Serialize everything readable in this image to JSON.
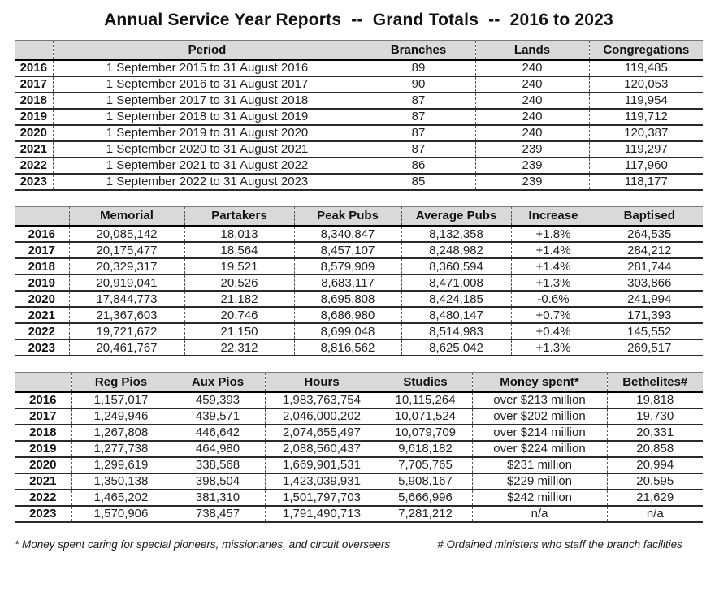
{
  "title": "Annual Service Year Reports  --  Grand Totals  --  2016 to 2023",
  "tables": [
    {
      "name": "period-overview",
      "columns": [
        "",
        "Period",
        "Branches",
        "Lands",
        "Congregations"
      ],
      "rows": [
        [
          "2016",
          "1 September 2015 to 31 August 2016",
          "89",
          "240",
          "119,485"
        ],
        [
          "2017",
          "1 September 2016 to 31 August 2017",
          "90",
          "240",
          "120,053"
        ],
        [
          "2018",
          "1 September 2017 to 31 August 2018",
          "87",
          "240",
          "119,954"
        ],
        [
          "2019",
          "1 September 2018 to 31 August 2019",
          "87",
          "240",
          "119,712"
        ],
        [
          "2020",
          "1 September 2019 to 31 August 2020",
          "87",
          "240",
          "120,387"
        ],
        [
          "2021",
          "1 September 2020 to 31 August 2021",
          "87",
          "239",
          "119,297"
        ],
        [
          "2022",
          "1 September 2021 to 31 August 2022",
          "86",
          "239",
          "117,960"
        ],
        [
          "2023",
          "1 September 2022 to 31 August 2023",
          "85",
          "239",
          "118,177"
        ]
      ]
    },
    {
      "name": "memorial-publishers",
      "columns": [
        "",
        "Memorial",
        "Partakers",
        "Peak Pubs",
        "Average Pubs",
        "Increase",
        "Baptised"
      ],
      "rows": [
        [
          "2016",
          "20,085,142",
          "18,013",
          "8,340,847",
          "8,132,358",
          "+1.8%",
          "264,535"
        ],
        [
          "2017",
          "20,175,477",
          "18,564",
          "8,457,107",
          "8,248,982",
          "+1.4%",
          "284,212"
        ],
        [
          "2018",
          "20,329,317",
          "19,521",
          "8,579,909",
          "8,360,594",
          "+1.4%",
          "281,744"
        ],
        [
          "2019",
          "20,919,041",
          "20,526",
          "8,683,117",
          "8,471,008",
          "+1.3%",
          "303,866"
        ],
        [
          "2020",
          "17,844,773",
          "21,182",
          "8,695,808",
          "8,424,185",
          "-0.6%",
          "241,994"
        ],
        [
          "2021",
          "21,367,603",
          "20,746",
          "8,686,980",
          "8,480,147",
          "+0.7%",
          "171,393"
        ],
        [
          "2022",
          "19,721,672",
          "21,150",
          "8,699,048",
          "8,514,983",
          "+0.4%",
          "145,552"
        ],
        [
          "2023",
          "20,461,767",
          "22,312",
          "8,816,562",
          "8,625,042",
          "+1.3%",
          "269,517"
        ]
      ]
    },
    {
      "name": "pioneers-hours-studies",
      "columns": [
        "",
        "Reg Pios",
        "Aux Pios",
        "Hours",
        "Studies",
        "Money spent*",
        "Bethelites#"
      ],
      "rows": [
        [
          "2016",
          "1,157,017",
          "459,393",
          "1,983,763,754",
          "10,115,264",
          "over $213 million",
          "19,818"
        ],
        [
          "2017",
          "1,249,946",
          "439,571",
          "2,046,000,202",
          "10,071,524",
          "over $202 million",
          "19,730"
        ],
        [
          "2018",
          "1,267,808",
          "446,642",
          "2,074,655,497",
          "10,079,709",
          "over $214 million",
          "20,331"
        ],
        [
          "2019",
          "1,277,738",
          "464,980",
          "2,088,560,437",
          "9,618,182",
          "over $224 million",
          "20,858"
        ],
        [
          "2020",
          "1,299,619",
          "338,568",
          "1,669,901,531",
          "7,705,765",
          "$231 million",
          "20,994"
        ],
        [
          "2021",
          "1,350,138",
          "398,504",
          "1,423,039,931",
          "5,908,167",
          "$229 million",
          "20,595"
        ],
        [
          "2022",
          "1,465,202",
          "381,310",
          "1,501,797,703",
          "5,666,996",
          "$242 million",
          "21,629"
        ],
        [
          "2023",
          "1,570,906",
          "738,457",
          "1,791,490,713",
          "7,281,212",
          "n/a",
          "n/a"
        ]
      ]
    }
  ],
  "footnotes": {
    "money": "* Money spent caring for special pioneers, missionaries, and circuit overseers",
    "bethelites": "# Ordained ministers who staff the branch facilities"
  },
  "colors": {
    "header_bg": "#d9d9d9",
    "row_border": "#2a2a2a",
    "dashed_divider": "#575757"
  }
}
